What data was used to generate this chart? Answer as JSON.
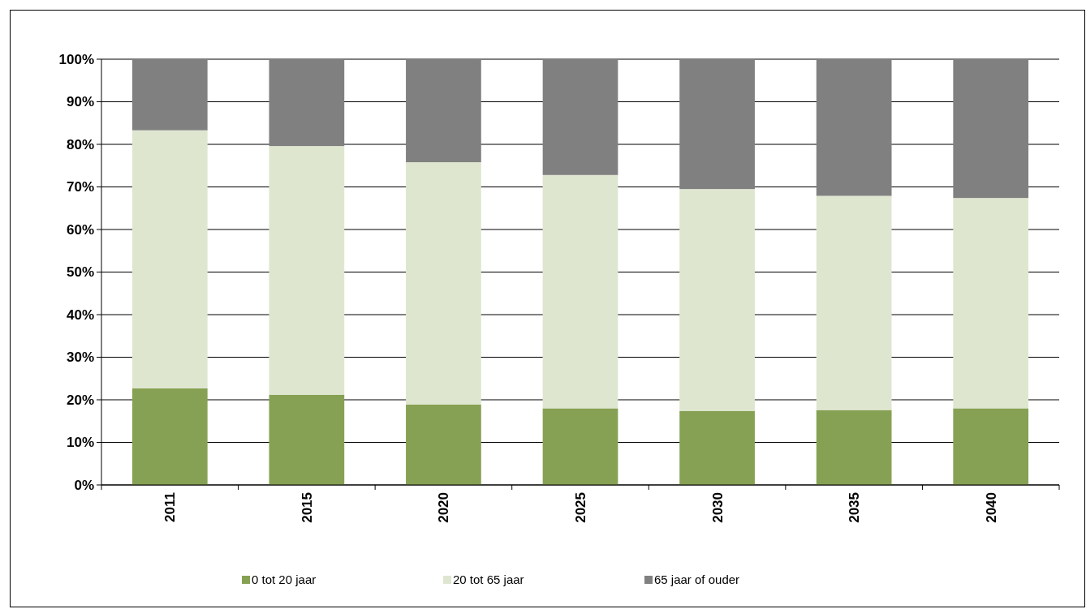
{
  "chart_data": {
    "type": "bar",
    "stacked": true,
    "categories": [
      "2011",
      "2015",
      "2020",
      "2025",
      "2030",
      "2035",
      "2040"
    ],
    "series": [
      {
        "name": "0 tot 20 jaar",
        "color": "#86a153",
        "values": [
          22.7,
          21.2,
          18.9,
          18.0,
          17.4,
          17.6,
          18.0
        ]
      },
      {
        "name": "20 tot 65 jaar",
        "color": "#dfe6d0",
        "values": [
          60.6,
          58.4,
          56.9,
          54.8,
          52.1,
          50.3,
          49.4
        ]
      },
      {
        "name": "65 jaar of ouder",
        "color": "#808080",
        "values": [
          16.7,
          20.4,
          24.2,
          27.2,
          30.5,
          32.1,
          32.6
        ]
      }
    ],
    "ylim": [
      0,
      100
    ],
    "yticks": [
      {
        "value": 0,
        "label": "0%"
      },
      {
        "value": 10,
        "label": "10%"
      },
      {
        "value": 20,
        "label": "20%"
      },
      {
        "value": 30,
        "label": "30%"
      },
      {
        "value": 40,
        "label": "40%"
      },
      {
        "value": 50,
        "label": "50%"
      },
      {
        "value": 60,
        "label": "60%"
      },
      {
        "value": 70,
        "label": "70%"
      },
      {
        "value": 80,
        "label": "80%"
      },
      {
        "value": 90,
        "label": "90%"
      },
      {
        "value": 100,
        "label": "100%"
      }
    ],
    "grid": "y",
    "legend": "bottom"
  }
}
